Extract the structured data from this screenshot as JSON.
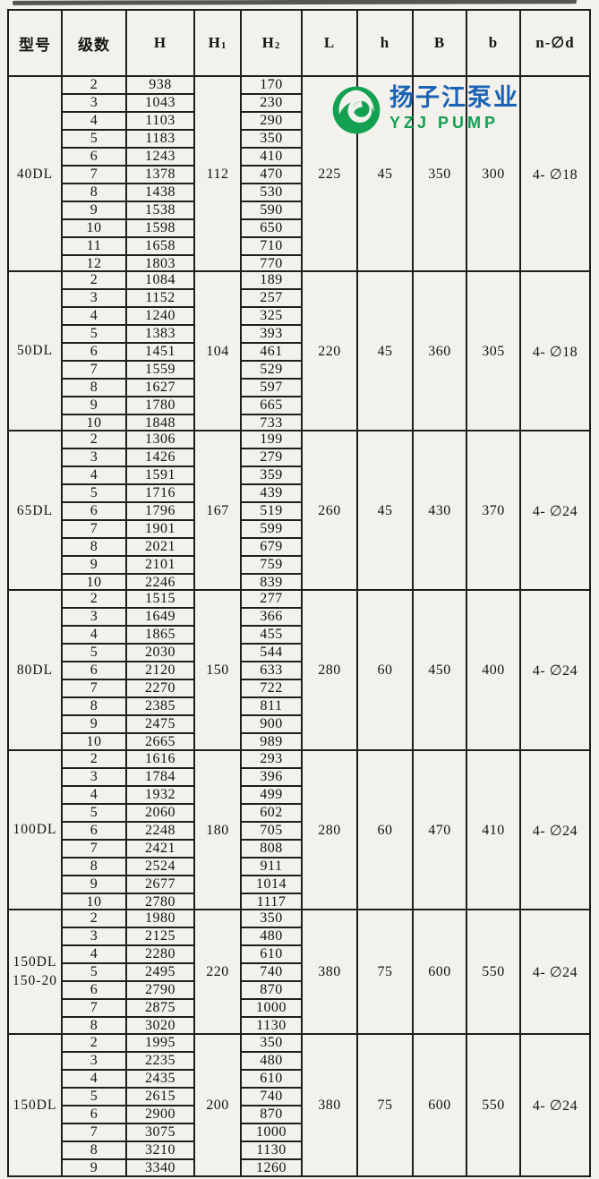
{
  "page": {
    "background": "#f2f1ec",
    "line_color": "#1f1e1c"
  },
  "logo": {
    "chinese": "扬子江泵业",
    "latin": "YZJ PUMP",
    "icon": "swirl-wave-icon",
    "green": "#12a051",
    "blue": "#1b63b5"
  },
  "table": {
    "headers": [
      {
        "t": "型号"
      },
      {
        "t": "级数"
      },
      {
        "t": "H"
      },
      {
        "t": "H",
        "sub": "1"
      },
      {
        "t": "H",
        "sub": "2"
      },
      {
        "t": "L"
      },
      {
        "t": "h"
      },
      {
        "t": "B"
      },
      {
        "t": "b"
      },
      {
        "t": "n-∅d"
      }
    ],
    "sections": [
      {
        "model": "40DL",
        "stages": [
          "2",
          "3",
          "4",
          "5",
          "6",
          "7",
          "8",
          "9",
          "10",
          "11",
          "12"
        ],
        "H": [
          "938",
          "1043",
          "1103",
          "1183",
          "1243",
          "1378",
          "1438",
          "1538",
          "1598",
          "1658",
          "1803"
        ],
        "H1": "112",
        "H2": [
          "170",
          "230",
          "290",
          "350",
          "410",
          "470",
          "530",
          "590",
          "650",
          "710",
          "770"
        ],
        "L": "225",
        "h": "45",
        "B": "350",
        "b": "300",
        "n": "4- ∅18"
      },
      {
        "model": "50DL",
        "stages": [
          "2",
          "3",
          "4",
          "5",
          "6",
          "7",
          "8",
          "9",
          "10"
        ],
        "H": [
          "1084",
          "1152",
          "1240",
          "1383",
          "1451",
          "1559",
          "1627",
          "1780",
          "1848"
        ],
        "H1": "104",
        "H2": [
          "189",
          "257",
          "325",
          "393",
          "461",
          "529",
          "597",
          "665",
          "733"
        ],
        "L": "220",
        "h": "45",
        "B": "360",
        "b": "305",
        "n": "4- ∅18"
      },
      {
        "model": "65DL",
        "stages": [
          "2",
          "3",
          "4",
          "5",
          "6",
          "7",
          "8",
          "9",
          "10"
        ],
        "H": [
          "1306",
          "1426",
          "1591",
          "1716",
          "1796",
          "1901",
          "2021",
          "2101",
          "2246"
        ],
        "H1": "167",
        "H2": [
          "199",
          "279",
          "359",
          "439",
          "519",
          "599",
          "679",
          "759",
          "839"
        ],
        "L": "260",
        "h": "45",
        "B": "430",
        "b": "370",
        "n": "4- ∅24"
      },
      {
        "model": "80DL",
        "stages": [
          "2",
          "3",
          "4",
          "5",
          "6",
          "7",
          "8",
          "9",
          "10"
        ],
        "H": [
          "1515",
          "1649",
          "1865",
          "2030",
          "2120",
          "2270",
          "2385",
          "2475",
          "2665"
        ],
        "H1": "150",
        "H2": [
          "277",
          "366",
          "455",
          "544",
          "633",
          "722",
          "811",
          "900",
          "989"
        ],
        "L": "280",
        "h": "60",
        "B": "450",
        "b": "400",
        "n": "4- ∅24"
      },
      {
        "model": "100DL",
        "stages": [
          "2",
          "3",
          "4",
          "5",
          "6",
          "7",
          "8",
          "9",
          "10"
        ],
        "H": [
          "1616",
          "1784",
          "1932",
          "2060",
          "2248",
          "2421",
          "2524",
          "2677",
          "2780"
        ],
        "H1": "180",
        "H2": [
          "293",
          "396",
          "499",
          "602",
          "705",
          "808",
          "911",
          "1014",
          "1117"
        ],
        "L": "280",
        "h": "60",
        "B": "470",
        "b": "410",
        "n": "4- ∅24"
      },
      {
        "model": "150DL\n150-20",
        "stages": [
          "2",
          "3",
          "4",
          "5",
          "6",
          "7",
          "8"
        ],
        "H": [
          "1980",
          "2125",
          "2280",
          "2495",
          "2790",
          "2875",
          "3020"
        ],
        "H1": "220",
        "H2": [
          "350",
          "480",
          "610",
          "740",
          "870",
          "1000",
          "1130"
        ],
        "L": "380",
        "h": "75",
        "B": "600",
        "b": "550",
        "n": "4- ∅24"
      },
      {
        "model": "150DL",
        "stages": [
          "2",
          "3",
          "4",
          "5",
          "6",
          "7",
          "8",
          "9"
        ],
        "H": [
          "1995",
          "2235",
          "2435",
          "2615",
          "2900",
          "3075",
          "3210",
          "3340"
        ],
        "H1": "200",
        "H2": [
          "350",
          "480",
          "610",
          "740",
          "870",
          "1000",
          "1130",
          "1260"
        ],
        "L": "380",
        "h": "75",
        "B": "600",
        "b": "550",
        "n": "4- ∅24"
      }
    ]
  }
}
